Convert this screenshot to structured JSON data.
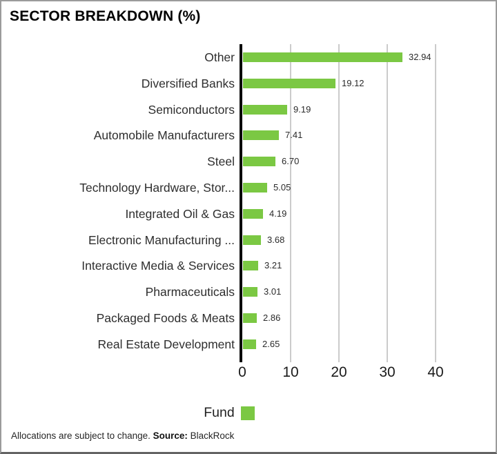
{
  "title": "SECTOR BREAKDOWN (%)",
  "chart_data": {
    "type": "bar",
    "orientation": "horizontal",
    "title": "SECTOR BREAKDOWN (%)",
    "xlabel": "",
    "ylabel": "",
    "categories": [
      "Other",
      "Diversified Banks",
      "Semiconductors",
      "Automobile Manufacturers",
      "Steel",
      "Technology Hardware, Stor...",
      "Integrated Oil & Gas",
      "Electronic Manufacturing ...",
      "Interactive Media & Services",
      "Pharmaceuticals",
      "Packaged Foods & Meats",
      "Real Estate Development"
    ],
    "series": [
      {
        "name": "Fund",
        "values": [
          32.94,
          19.12,
          9.19,
          7.41,
          6.7,
          5.05,
          4.19,
          3.68,
          3.21,
          3.01,
          2.86,
          2.65
        ]
      }
    ],
    "value_label_decimals": 2,
    "xlim": [
      0,
      40
    ],
    "xticks": [
      0,
      10,
      20,
      30,
      40
    ],
    "grid": "vertical-gridlines",
    "legend_position": "bottom-center",
    "bar_color": "#7bc843",
    "gridline_color": "#cbcbcb",
    "axis_color": "#000000"
  },
  "legend": {
    "fund_label": "Fund"
  },
  "footer": {
    "text": "Allocations are subject to change. ",
    "source_label": "Source:",
    "source_value": " BlackRock"
  }
}
